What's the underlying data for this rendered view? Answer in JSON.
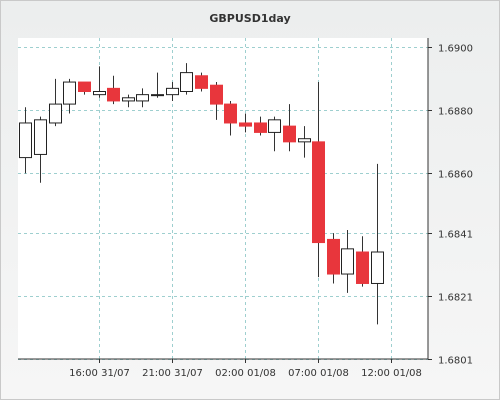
{
  "chart_data": {
    "type": "candlestick",
    "title": "GBPUSD1day",
    "xlabel": "",
    "ylabel": "",
    "ylim": [
      1.6801,
      1.6903
    ],
    "y_ticks": [
      "1.6900",
      "1.6880",
      "1.6860",
      "1.6841",
      "1.6821",
      "1.6801"
    ],
    "y_tick_values": [
      1.69,
      1.688,
      1.686,
      1.6841,
      1.6821,
      1.6801
    ],
    "x_ticks": [
      "16:00 31/07",
      "21:00 31/07",
      "02:00 01/08",
      "07:00 01/08",
      "12:00 01/08"
    ],
    "x_tick_hours": [
      16,
      21,
      26,
      31,
      36
    ],
    "x_range_hours": [
      10.5,
      38.5
    ],
    "grid": true,
    "colors": {
      "bull": "#ffffff",
      "bear": "#e8363c",
      "wick": "#333333",
      "grid": "#9ecfcf"
    },
    "candles": [
      {
        "hour": 11,
        "open": 1.6865,
        "high": 1.6881,
        "low": 1.686,
        "close": 1.6876
      },
      {
        "hour": 12,
        "open": 1.6866,
        "high": 1.6878,
        "low": 1.6857,
        "close": 1.6877
      },
      {
        "hour": 13,
        "open": 1.6876,
        "high": 1.689,
        "low": 1.6875,
        "close": 1.6882
      },
      {
        "hour": 14,
        "open": 1.6882,
        "high": 1.689,
        "low": 1.6879,
        "close": 1.6889
      },
      {
        "hour": 15,
        "open": 1.6889,
        "high": 1.6889,
        "low": 1.6885,
        "close": 1.6886
      },
      {
        "hour": 16,
        "open": 1.6885,
        "high": 1.6894,
        "low": 1.6884,
        "close": 1.6886
      },
      {
        "hour": 17,
        "open": 1.6887,
        "high": 1.6891,
        "low": 1.6882,
        "close": 1.6883
      },
      {
        "hour": 18,
        "open": 1.6883,
        "high": 1.6885,
        "low": 1.6881,
        "close": 1.6884
      },
      {
        "hour": 19,
        "open": 1.6883,
        "high": 1.6887,
        "low": 1.6881,
        "close": 1.6885
      },
      {
        "hour": 20,
        "open": 1.6885,
        "high": 1.6892,
        "low": 1.6884,
        "close": 1.6885
      },
      {
        "hour": 21,
        "open": 1.6885,
        "high": 1.6889,
        "low": 1.6883,
        "close": 1.6887
      },
      {
        "hour": 22,
        "open": 1.6886,
        "high": 1.6895,
        "low": 1.6885,
        "close": 1.6892
      },
      {
        "hour": 23,
        "open": 1.6891,
        "high": 1.6892,
        "low": 1.6886,
        "close": 1.6887
      },
      {
        "hour": 24,
        "open": 1.6888,
        "high": 1.6889,
        "low": 1.6877,
        "close": 1.6882
      },
      {
        "hour": 25,
        "open": 1.6882,
        "high": 1.6883,
        "low": 1.6872,
        "close": 1.6876
      },
      {
        "hour": 26,
        "open": 1.6876,
        "high": 1.6879,
        "low": 1.6873,
        "close": 1.6875
      },
      {
        "hour": 27,
        "open": 1.6876,
        "high": 1.6878,
        "low": 1.6872,
        "close": 1.6873
      },
      {
        "hour": 28,
        "open": 1.6873,
        "high": 1.6878,
        "low": 1.6867,
        "close": 1.6877
      },
      {
        "hour": 29,
        "open": 1.6875,
        "high": 1.6882,
        "low": 1.6867,
        "close": 1.687
      },
      {
        "hour": 30,
        "open": 1.687,
        "high": 1.6875,
        "low": 1.6865,
        "close": 1.6871
      },
      {
        "hour": 31,
        "open": 1.687,
        "high": 1.6889,
        "low": 1.6827,
        "close": 1.6838
      },
      {
        "hour": 32,
        "open": 1.6839,
        "high": 1.6841,
        "low": 1.6825,
        "close": 1.6828
      },
      {
        "hour": 33,
        "open": 1.6828,
        "high": 1.6842,
        "low": 1.6822,
        "close": 1.6836
      },
      {
        "hour": 34,
        "open": 1.6835,
        "high": 1.684,
        "low": 1.6824,
        "close": 1.6825
      },
      {
        "hour": 35,
        "open": 1.6825,
        "high": 1.6863,
        "low": 1.6812,
        "close": 1.6835
      }
    ]
  }
}
